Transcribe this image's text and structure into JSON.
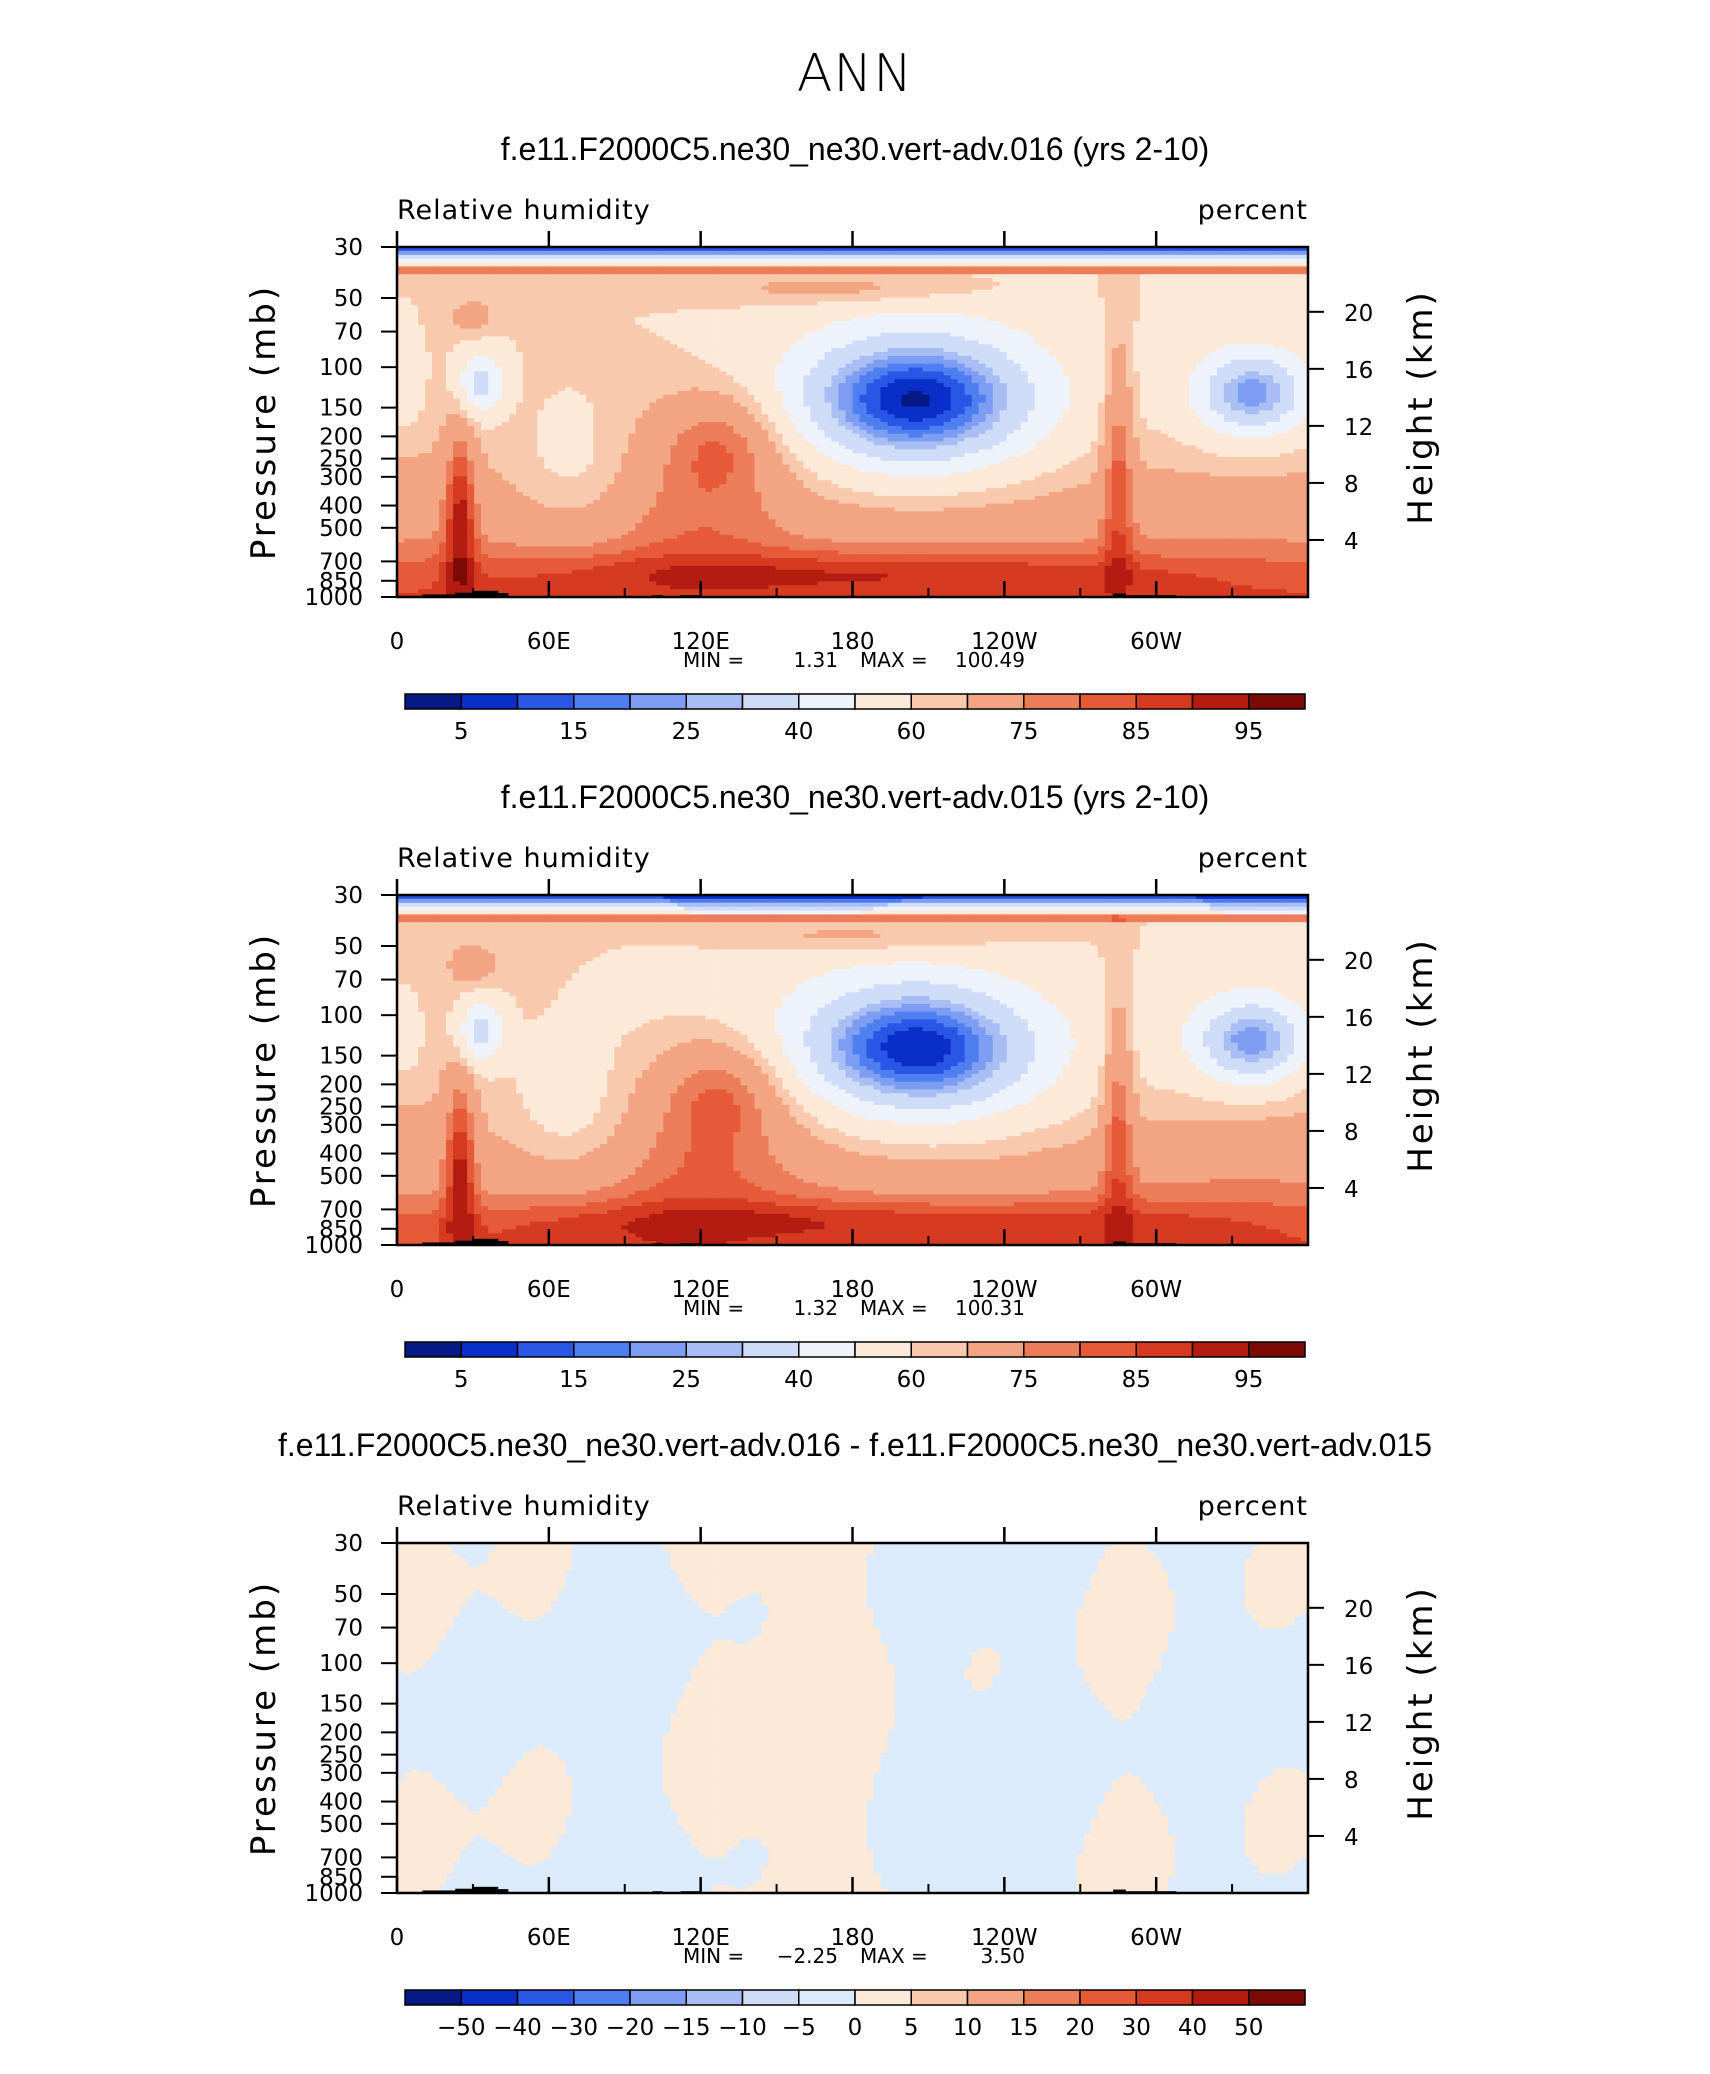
{
  "figure_title": "ANN",
  "chart_data": [
    {
      "type": "heatmap",
      "title": "f.e11.F2000C5.ne30_ne30.vert-adv.016 (yrs 2-10)",
      "variable": "Relative humidity",
      "units": "percent",
      "ylabel": "Pressure (mb)",
      "y2label": "Height (km)",
      "x_ticks": [
        "0",
        "60E",
        "120E",
        "180",
        "120W",
        "60W"
      ],
      "y_ticks": [
        "30",
        "50",
        "70",
        "100",
        "150",
        "200",
        "250",
        "300",
        "400",
        "500",
        "700",
        "850",
        "1000"
      ],
      "y2_ticks": [
        "20",
        "16",
        "12",
        "8",
        "4"
      ],
      "stats": {
        "min_label": "MIN =",
        "min": "1.31",
        "max_label": "MAX =",
        "max": "100.49"
      },
      "colorbar": {
        "labels": [
          "5",
          "15",
          "25",
          "40",
          "60",
          "75",
          "85",
          "95"
        ],
        "colors": [
          "#061a85",
          "#0a2fc9",
          "#2a56e6",
          "#4f7ef0",
          "#7c9df2",
          "#a8bdf3",
          "#cfdcf8",
          "#eef3fb",
          "#fde9d8",
          "#f9c9ad",
          "#f3a482",
          "#ec7d5a",
          "#e65a38",
          "#d63a20",
          "#b31c11",
          "#7c0b08"
        ]
      }
    },
    {
      "type": "heatmap",
      "title": "f.e11.F2000C5.ne30_ne30.vert-adv.015 (yrs 2-10)",
      "variable": "Relative humidity",
      "units": "percent",
      "ylabel": "Pressure (mb)",
      "y2label": "Height (km)",
      "x_ticks": [
        "0",
        "60E",
        "120E",
        "180",
        "120W",
        "60W"
      ],
      "y_ticks": [
        "30",
        "50",
        "70",
        "100",
        "150",
        "200",
        "250",
        "300",
        "400",
        "500",
        "700",
        "850",
        "1000"
      ],
      "y2_ticks": [
        "20",
        "16",
        "12",
        "8",
        "4"
      ],
      "stats": {
        "min_label": "MIN =",
        "min": "1.32",
        "max_label": "MAX =",
        "max": "100.31"
      },
      "colorbar": {
        "labels": [
          "5",
          "15",
          "25",
          "40",
          "60",
          "75",
          "85",
          "95"
        ],
        "colors": [
          "#061a85",
          "#0a2fc9",
          "#2a56e6",
          "#4f7ef0",
          "#7c9df2",
          "#a8bdf3",
          "#cfdcf8",
          "#eef3fb",
          "#fde9d8",
          "#f9c9ad",
          "#f3a482",
          "#ec7d5a",
          "#e65a38",
          "#d63a20",
          "#b31c11",
          "#7c0b08"
        ]
      }
    },
    {
      "type": "heatmap",
      "title": "f.e11.F2000C5.ne30_ne30.vert-adv.016 - f.e11.F2000C5.ne30_ne30.vert-adv.015",
      "variable": "Relative humidity",
      "units": "percent",
      "ylabel": "Pressure (mb)",
      "y2label": "Height (km)",
      "x_ticks": [
        "0",
        "60E",
        "120E",
        "180",
        "120W",
        "60W"
      ],
      "y_ticks": [
        "30",
        "50",
        "70",
        "100",
        "150",
        "200",
        "250",
        "300",
        "400",
        "500",
        "700",
        "850",
        "1000"
      ],
      "y2_ticks": [
        "20",
        "16",
        "12",
        "8",
        "4"
      ],
      "stats": {
        "min_label": "MIN =",
        "min": "−2.25",
        "max_label": "MAX =",
        "max": "3.50"
      },
      "colorbar": {
        "labels": [
          "−50",
          "−40",
          "−30",
          "−20",
          "−15",
          "−10",
          "−5",
          "0",
          "5",
          "10",
          "15",
          "20",
          "30",
          "40",
          "50"
        ],
        "colors": [
          "#061a85",
          "#0a2fc9",
          "#2a56e6",
          "#4f7ef0",
          "#7c9df2",
          "#a8bdf3",
          "#cfdcf8",
          "#dcebfb",
          "#fde9d8",
          "#f9c9ad",
          "#f3a482",
          "#ec7d5a",
          "#e65a38",
          "#d63a20",
          "#b31c11",
          "#7c0b08"
        ]
      }
    }
  ]
}
